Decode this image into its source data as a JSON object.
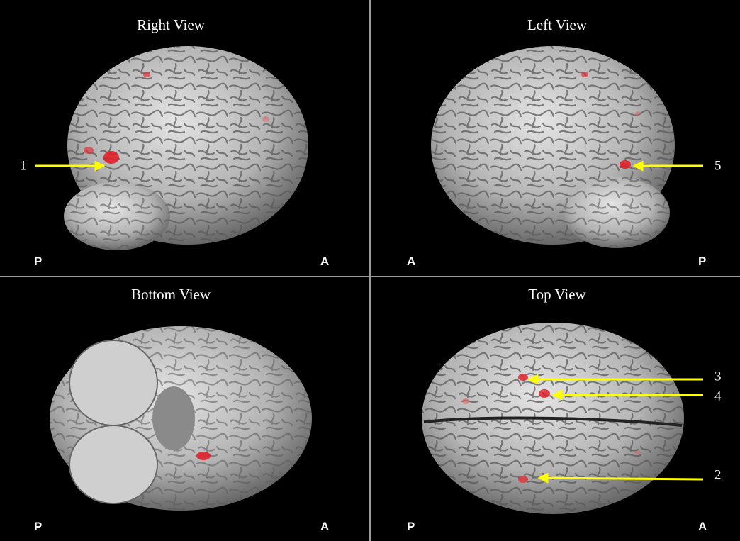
{
  "panels": [
    {
      "title": "Right View",
      "left_label": "P",
      "right_label": "A",
      "annotations": [
        {
          "label": "1"
        }
      ]
    },
    {
      "title": "Left View",
      "left_label": "A",
      "right_label": "P",
      "annotations": [
        {
          "label": "5"
        }
      ]
    },
    {
      "title": "Bottom View",
      "left_label": "P",
      "right_label": "A",
      "annotations": []
    },
    {
      "title": "Top View",
      "left_label": "P",
      "right_label": "A",
      "annotations": [
        {
          "label": "3"
        },
        {
          "label": "4"
        },
        {
          "label": "2"
        }
      ]
    }
  ]
}
